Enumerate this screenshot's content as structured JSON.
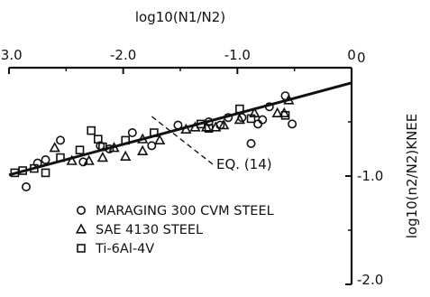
{
  "chart_data": {
    "type": "scatter",
    "title": "",
    "xlabel": "log10(N1/N2)",
    "ylabel": "log10(n2/N2)KNEE",
    "x_axis_position": "top",
    "y_axis_position": "right",
    "xlim": [
      -3.0,
      0.0
    ],
    "ylim": [
      -2.0,
      0.0
    ],
    "x_ticks": [
      -3.0,
      -2.0,
      -1.0,
      0.0
    ],
    "x_tick_labels": [
      "-3.0",
      "-2.0",
      "-1.0",
      "0"
    ],
    "y_ticks": [
      0.0,
      -1.0,
      -2.0
    ],
    "y_tick_labels": [
      "0",
      "-1.0",
      "-2.0"
    ],
    "grid": false,
    "legend_position": "bottom-left",
    "annotation": {
      "text": "EQ. (14)",
      "points_to": [
        -1.75,
        -0.35
      ]
    },
    "fit_line": {
      "label": "EQ. (14)",
      "x": [
        -3.0,
        0.0
      ],
      "y": [
        -0.99,
        -0.14
      ]
    },
    "series": [
      {
        "name": "MARAGING 300 CVM STEEL",
        "marker": "circle",
        "x": [
          -2.85,
          -2.75,
          -2.68,
          -2.55,
          -2.35,
          -2.2,
          -2.12,
          -1.92,
          -1.75,
          -1.52,
          -1.25,
          -1.15,
          -1.08,
          -0.96,
          -0.88,
          -0.82,
          -0.78,
          -0.72,
          -0.58,
          -0.52
        ],
        "y": [
          -1.1,
          -0.88,
          -0.85,
          -0.67,
          -0.87,
          -0.72,
          -0.75,
          -0.6,
          -0.72,
          -0.53,
          -0.5,
          -0.53,
          -0.46,
          -0.46,
          -0.7,
          -0.52,
          -0.48,
          -0.36,
          -0.26,
          -0.52
        ]
      },
      {
        "name": "SAE 4130 STEEL",
        "marker": "triangle",
        "x": [
          -2.6,
          -2.45,
          -2.3,
          -2.18,
          -2.08,
          -1.98,
          -1.83,
          -1.68,
          -1.45,
          -1.37,
          -1.27,
          -1.19,
          -1.12,
          -0.98,
          -0.85,
          -0.65,
          -0.59,
          -0.55
        ],
        "y": [
          -0.74,
          -0.86,
          -0.86,
          -0.83,
          -0.74,
          -0.82,
          -0.77,
          -0.67,
          -0.57,
          -0.55,
          -0.55,
          -0.55,
          -0.53,
          -0.48,
          -0.42,
          -0.42,
          -0.42,
          -0.3
        ],
        "extra_points": [
          [
            -1.83,
            -0.66
          ]
        ]
      },
      {
        "name": "Ti-6Al-4V",
        "marker": "square",
        "x": [
          -2.95,
          -2.88,
          -2.78,
          -2.68,
          -2.55,
          -2.38,
          -2.28,
          -2.22,
          -2.18,
          -1.98,
          -1.73,
          -1.32,
          -1.25,
          -0.98,
          -0.88,
          -0.58
        ],
        "y": [
          -0.97,
          -0.95,
          -0.93,
          -0.97,
          -0.83,
          -0.76,
          -0.58,
          -0.66,
          -0.73,
          -0.67,
          -0.6,
          -0.52,
          -0.56,
          -0.38,
          -0.47,
          -0.44
        ]
      }
    ]
  }
}
